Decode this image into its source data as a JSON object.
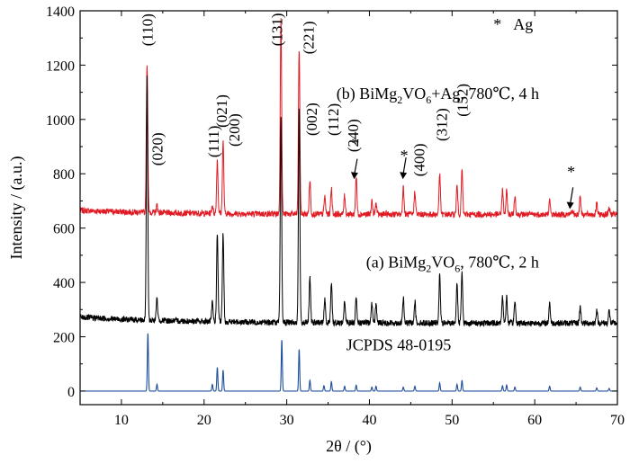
{
  "chart_data": {
    "type": "line",
    "xlabel": "2θ / (°)",
    "ylabel": "Intensity / (a.u.)",
    "xlim": [
      5,
      70
    ],
    "ylim": [
      -50,
      1400
    ],
    "x_ticks": [
      10,
      20,
      30,
      40,
      50,
      60,
      70
    ],
    "y_ticks": [
      0,
      200,
      400,
      600,
      800,
      1000,
      1200,
      1400
    ],
    "grid": false,
    "legend": {
      "symbol": "*",
      "label": "Ag",
      "placement": "top-right"
    },
    "series": [
      {
        "name": "(b) BiMg2VO6+Ag, 780℃, 4 h",
        "label_parts": [
          "(b) BiMg",
          "2",
          "VO",
          "6",
          "+Ag, 780℃, 4 h"
        ],
        "color": "#e01b24",
        "baseline": 650,
        "peaks": [
          [
            13.1,
            1200
          ],
          [
            14.3,
            678
          ],
          [
            21.0,
            680
          ],
          [
            21.6,
            845
          ],
          [
            22.3,
            915
          ],
          [
            29.3,
            1375
          ],
          [
            31.5,
            1260
          ],
          [
            32.8,
            775
          ],
          [
            34.6,
            715
          ],
          [
            35.4,
            745
          ],
          [
            37.0,
            720
          ],
          [
            38.4,
            790
          ],
          [
            40.3,
            700
          ],
          [
            40.8,
            690
          ],
          [
            44.1,
            750
          ],
          [
            45.5,
            735
          ],
          [
            48.5,
            800
          ],
          [
            50.6,
            755
          ],
          [
            51.2,
            815
          ],
          [
            56.1,
            740
          ],
          [
            56.6,
            735
          ],
          [
            57.6,
            720
          ],
          [
            61.8,
            700
          ],
          [
            64.5,
            665
          ],
          [
            65.5,
            720
          ],
          [
            67.5,
            690
          ],
          [
            69.0,
            675
          ]
        ]
      },
      {
        "name": "(a) BiMg2VO6, 780℃, 2 h",
        "label_parts": [
          "(a) BiMg",
          "2",
          "VO",
          "6",
          ", 780℃, 2 h"
        ],
        "color": "#000000",
        "baseline": 250,
        "peaks": [
          [
            13.1,
            1140
          ],
          [
            14.3,
            330
          ],
          [
            21.0,
            320
          ],
          [
            21.6,
            575
          ],
          [
            22.3,
            575
          ],
          [
            29.3,
            1000
          ],
          [
            31.5,
            1040
          ],
          [
            32.8,
            415
          ],
          [
            34.6,
            335
          ],
          [
            35.4,
            400
          ],
          [
            37.0,
            330
          ],
          [
            38.4,
            350
          ],
          [
            40.3,
            325
          ],
          [
            40.8,
            320
          ],
          [
            44.1,
            340
          ],
          [
            45.5,
            330
          ],
          [
            48.5,
            425
          ],
          [
            50.6,
            400
          ],
          [
            51.2,
            435
          ],
          [
            56.1,
            350
          ],
          [
            56.6,
            345
          ],
          [
            57.6,
            330
          ],
          [
            61.8,
            325
          ],
          [
            65.5,
            310
          ],
          [
            67.5,
            300
          ],
          [
            69.0,
            295
          ]
        ]
      },
      {
        "name": "JCPDS 48-0195",
        "color": "#1f4e9c",
        "baseline": 0,
        "peaks": [
          [
            13.2,
            215
          ],
          [
            14.3,
            25
          ],
          [
            21.0,
            25
          ],
          [
            21.6,
            88
          ],
          [
            22.3,
            78
          ],
          [
            29.4,
            190
          ],
          [
            31.5,
            155
          ],
          [
            32.8,
            40
          ],
          [
            34.5,
            20
          ],
          [
            35.4,
            35
          ],
          [
            37.0,
            18
          ],
          [
            38.4,
            22
          ],
          [
            40.3,
            15
          ],
          [
            40.8,
            18
          ],
          [
            44.1,
            15
          ],
          [
            45.5,
            18
          ],
          [
            48.5,
            30
          ],
          [
            50.6,
            25
          ],
          [
            51.2,
            40
          ],
          [
            56.1,
            20
          ],
          [
            56.6,
            22
          ],
          [
            57.6,
            15
          ],
          [
            61.8,
            18
          ],
          [
            65.5,
            15
          ],
          [
            67.5,
            12
          ],
          [
            69.0,
            10
          ]
        ]
      }
    ],
    "peak_labels": [
      {
        "text": "(110)",
        "x": 13.1,
        "y": 1270
      },
      {
        "text": "(020)",
        "x": 14.3,
        "y": 830
      },
      {
        "text": "(111)",
        "x": 21.1,
        "y": 860
      },
      {
        "text": "(021)",
        "x": 22.1,
        "y": 970
      },
      {
        "text": "(200)",
        "x": 23.6,
        "y": 900
      },
      {
        "text": "(131)",
        "x": 28.8,
        "y": 1270
      },
      {
        "text": "(221)",
        "x": 32.6,
        "y": 1240
      },
      {
        "text": "(002)",
        "x": 33.0,
        "y": 940
      },
      {
        "text": "(112)",
        "x": 35.6,
        "y": 940
      },
      {
        "text": "(240)",
        "x": 38.0,
        "y": 880
      },
      {
        "text": "(400)",
        "x": 46.0,
        "y": 790
      },
      {
        "text": "(312)",
        "x": 48.7,
        "y": 920
      },
      {
        "text": "(152)",
        "x": 51.2,
        "y": 1010
      }
    ],
    "ag_markers": [
      {
        "symbol": "*",
        "x": 38.2,
        "arrow_from": 855,
        "arrow_to": 780,
        "star_y": 925
      },
      {
        "symbol": "*",
        "x": 44.1,
        "arrow_from": 860,
        "arrow_to": 780,
        "star_y": 880
      },
      {
        "symbol": "*",
        "x": 64.3,
        "arrow_from": 750,
        "arrow_to": 670,
        "star_y": 820
      }
    ]
  }
}
